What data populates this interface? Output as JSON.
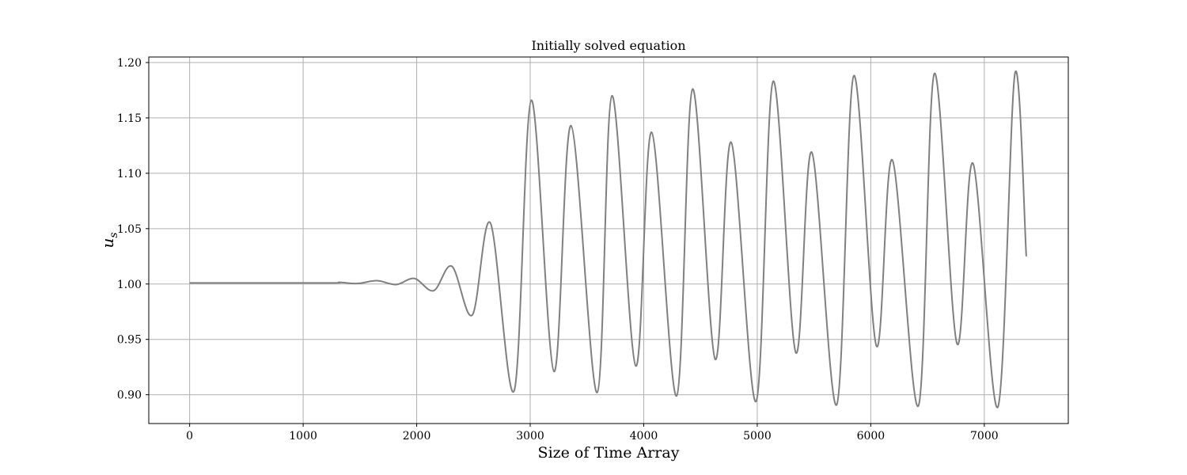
{
  "chart_data": {
    "type": "line",
    "title": "Initially solved equation",
    "xlabel": "Size of Time Array",
    "ylabel": "u",
    "ylabel_subscript": "s",
    "xlim": [
      -360,
      7740
    ],
    "ylim": [
      0.874,
      1.205
    ],
    "x_ticks": [
      0,
      1000,
      2000,
      3000,
      4000,
      5000,
      6000,
      7000
    ],
    "y_ticks": [
      0.9,
      0.95,
      1.0,
      1.05,
      1.1,
      1.15,
      1.2
    ],
    "grid": true,
    "colors": {
      "line": "#808080",
      "grid": "#b0b0b0"
    },
    "series": [
      {
        "x": [
          0,
          1200,
          1320,
          1480,
          1650,
          1820,
          1980,
          2150,
          2310,
          2490,
          2650,
          2860,
          3010,
          3210,
          3360,
          3590,
          3720,
          3930,
          4070,
          4290,
          4430,
          4630,
          4770,
          4990,
          5140,
          5340,
          5480,
          5700,
          5850,
          6050,
          6190,
          6420,
          6560,
          6760,
          6900,
          7120,
          7270,
          7370
        ],
        "y": [
          1.001,
          1.001,
          1.0015,
          1.0005,
          1.003,
          0.9995,
          1.005,
          0.994,
          1.016,
          0.972,
          1.055,
          0.904,
          1.166,
          0.921,
          1.143,
          0.902,
          1.17,
          0.926,
          1.137,
          0.899,
          1.176,
          0.932,
          1.128,
          0.894,
          1.183,
          0.938,
          1.119,
          0.891,
          1.188,
          0.944,
          1.112,
          0.89,
          1.19,
          0.946,
          1.109,
          0.889,
          1.19,
          1.025
        ]
      }
    ]
  }
}
